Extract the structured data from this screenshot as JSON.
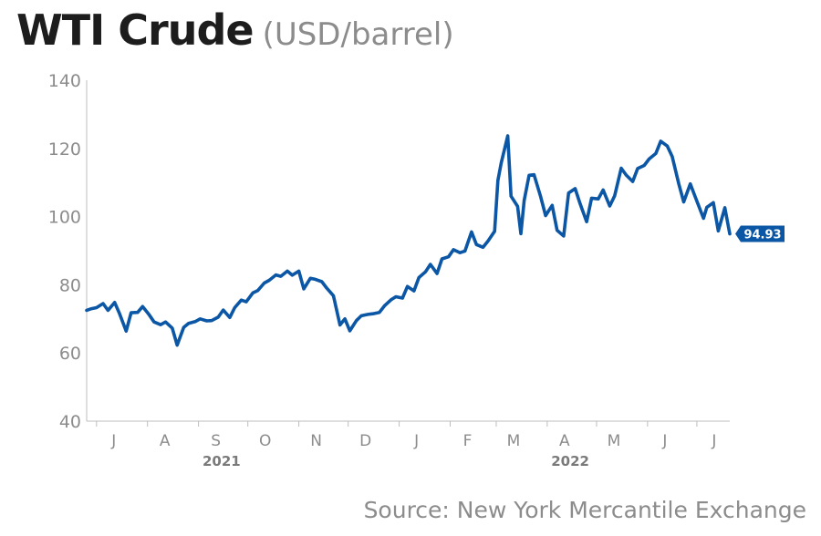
{
  "header": {
    "title": "WTI Crude",
    "unit": "(USD/barrel)"
  },
  "source": "Source: New York Mercantile Exchange",
  "colors": {
    "line": "#0b57a5",
    "axis": "#bdbdbd",
    "tick_text": "#8c8c8c",
    "year_text": "#7a7a7a"
  },
  "chart_data": {
    "type": "line",
    "title": "WTI Crude",
    "ylabel": "USD/barrel",
    "ylim": [
      40,
      140
    ],
    "yticks": [
      40,
      60,
      80,
      100,
      120,
      140
    ],
    "xlim": [
      "2021-06-25",
      "2022-07-21"
    ],
    "month_ticks": [
      {
        "label": "J",
        "date": "2021-07-01"
      },
      {
        "label": "A",
        "date": "2021-08-01"
      },
      {
        "label": "S",
        "date": "2021-09-01"
      },
      {
        "label": "O",
        "date": "2021-10-01"
      },
      {
        "label": "N",
        "date": "2021-11-01"
      },
      {
        "label": "D",
        "date": "2021-12-01"
      },
      {
        "label": "J",
        "date": "2022-01-01"
      },
      {
        "label": "F",
        "date": "2022-02-01"
      },
      {
        "label": "M",
        "date": "2022-03-01"
      },
      {
        "label": "A",
        "date": "2022-04-01"
      },
      {
        "label": "M",
        "date": "2022-05-01"
      },
      {
        "label": "J",
        "date": "2022-06-01"
      },
      {
        "label": "J",
        "date": "2022-07-01"
      }
    ],
    "years": [
      {
        "label": "2021",
        "date": "2021-09-15"
      },
      {
        "label": "2022",
        "date": "2022-04-15"
      }
    ],
    "end_label": "94.93",
    "series": [
      {
        "x": [
          "2021-06-25",
          "2021-06-28",
          "2021-07-01",
          "2021-07-05",
          "2021-07-08",
          "2021-07-12",
          "2021-07-15",
          "2021-07-19",
          "2021-07-22",
          "2021-07-26",
          "2021-07-29",
          "2021-08-02",
          "2021-08-05",
          "2021-08-09",
          "2021-08-12",
          "2021-08-16",
          "2021-08-19",
          "2021-08-23",
          "2021-08-26",
          "2021-08-30",
          "2021-09-02",
          "2021-09-06",
          "2021-09-09",
          "2021-09-13",
          "2021-09-16",
          "2021-09-20",
          "2021-09-23",
          "2021-09-27",
          "2021-09-30",
          "2021-10-04",
          "2021-10-07",
          "2021-10-11",
          "2021-10-14",
          "2021-10-18",
          "2021-10-21",
          "2021-10-25",
          "2021-10-28",
          "2021-11-01",
          "2021-11-04",
          "2021-11-08",
          "2021-11-11",
          "2021-11-15",
          "2021-11-18",
          "2021-11-22",
          "2021-11-26",
          "2021-11-29",
          "2021-12-02",
          "2021-12-06",
          "2021-12-09",
          "2021-12-13",
          "2021-12-16",
          "2021-12-20",
          "2021-12-23",
          "2021-12-27",
          "2021-12-30",
          "2022-01-03",
          "2022-01-06",
          "2022-01-10",
          "2022-01-13",
          "2022-01-17",
          "2022-01-20",
          "2022-01-24",
          "2022-01-27",
          "2022-01-31",
          "2022-02-03",
          "2022-02-07",
          "2022-02-10",
          "2022-02-14",
          "2022-02-17",
          "2022-02-21",
          "2022-02-24",
          "2022-02-28",
          "2022-03-02",
          "2022-03-04",
          "2022-03-08",
          "2022-03-10",
          "2022-03-14",
          "2022-03-16",
          "2022-03-18",
          "2022-03-21",
          "2022-03-24",
          "2022-03-28",
          "2022-03-31",
          "2022-04-04",
          "2022-04-07",
          "2022-04-11",
          "2022-04-14",
          "2022-04-18",
          "2022-04-21",
          "2022-04-25",
          "2022-04-28",
          "2022-05-02",
          "2022-05-05",
          "2022-05-09",
          "2022-05-12",
          "2022-05-16",
          "2022-05-19",
          "2022-05-23",
          "2022-05-26",
          "2022-05-30",
          "2022-06-02",
          "2022-06-06",
          "2022-06-09",
          "2022-06-13",
          "2022-06-16",
          "2022-06-20",
          "2022-06-23",
          "2022-06-27",
          "2022-06-30",
          "2022-07-05",
          "2022-07-07",
          "2022-07-11",
          "2022-07-14",
          "2022-07-18",
          "2022-07-21"
        ],
        "y": [
          72.5,
          73.0,
          73.3,
          74.5,
          72.5,
          74.8,
          71.5,
          66.4,
          71.8,
          71.9,
          73.6,
          71.2,
          69.1,
          68.3,
          69.1,
          67.3,
          62.3,
          67.5,
          68.7,
          69.2,
          70.0,
          69.4,
          69.5,
          70.5,
          72.6,
          70.4,
          73.3,
          75.5,
          75.0,
          77.6,
          78.3,
          80.5,
          81.3,
          82.9,
          82.5,
          84.0,
          82.8,
          84.0,
          78.8,
          81.9,
          81.6,
          80.9,
          79.0,
          76.8,
          68.2,
          70.0,
          66.5,
          69.5,
          70.9,
          71.3,
          71.5,
          71.9,
          73.8,
          75.6,
          76.5,
          76.1,
          79.5,
          78.2,
          82.1,
          83.8,
          86.0,
          83.3,
          87.6,
          88.2,
          90.3,
          89.4,
          89.9,
          95.5,
          91.8,
          91.0,
          92.8,
          95.7,
          110.6,
          115.7,
          123.7,
          106.0,
          103.0,
          95.0,
          104.7,
          112.1,
          112.3,
          105.9,
          100.3,
          103.3,
          96.0,
          94.3,
          106.9,
          108.2,
          103.8,
          98.5,
          105.4,
          105.2,
          107.8,
          103.1,
          106.1,
          114.2,
          112.2,
          110.3,
          114.1,
          115.0,
          116.9,
          118.5,
          122.1,
          120.7,
          117.6,
          109.6,
          104.3,
          109.6,
          105.8,
          99.5,
          102.7,
          104.1,
          95.8,
          102.6,
          94.93
        ]
      }
    ]
  }
}
